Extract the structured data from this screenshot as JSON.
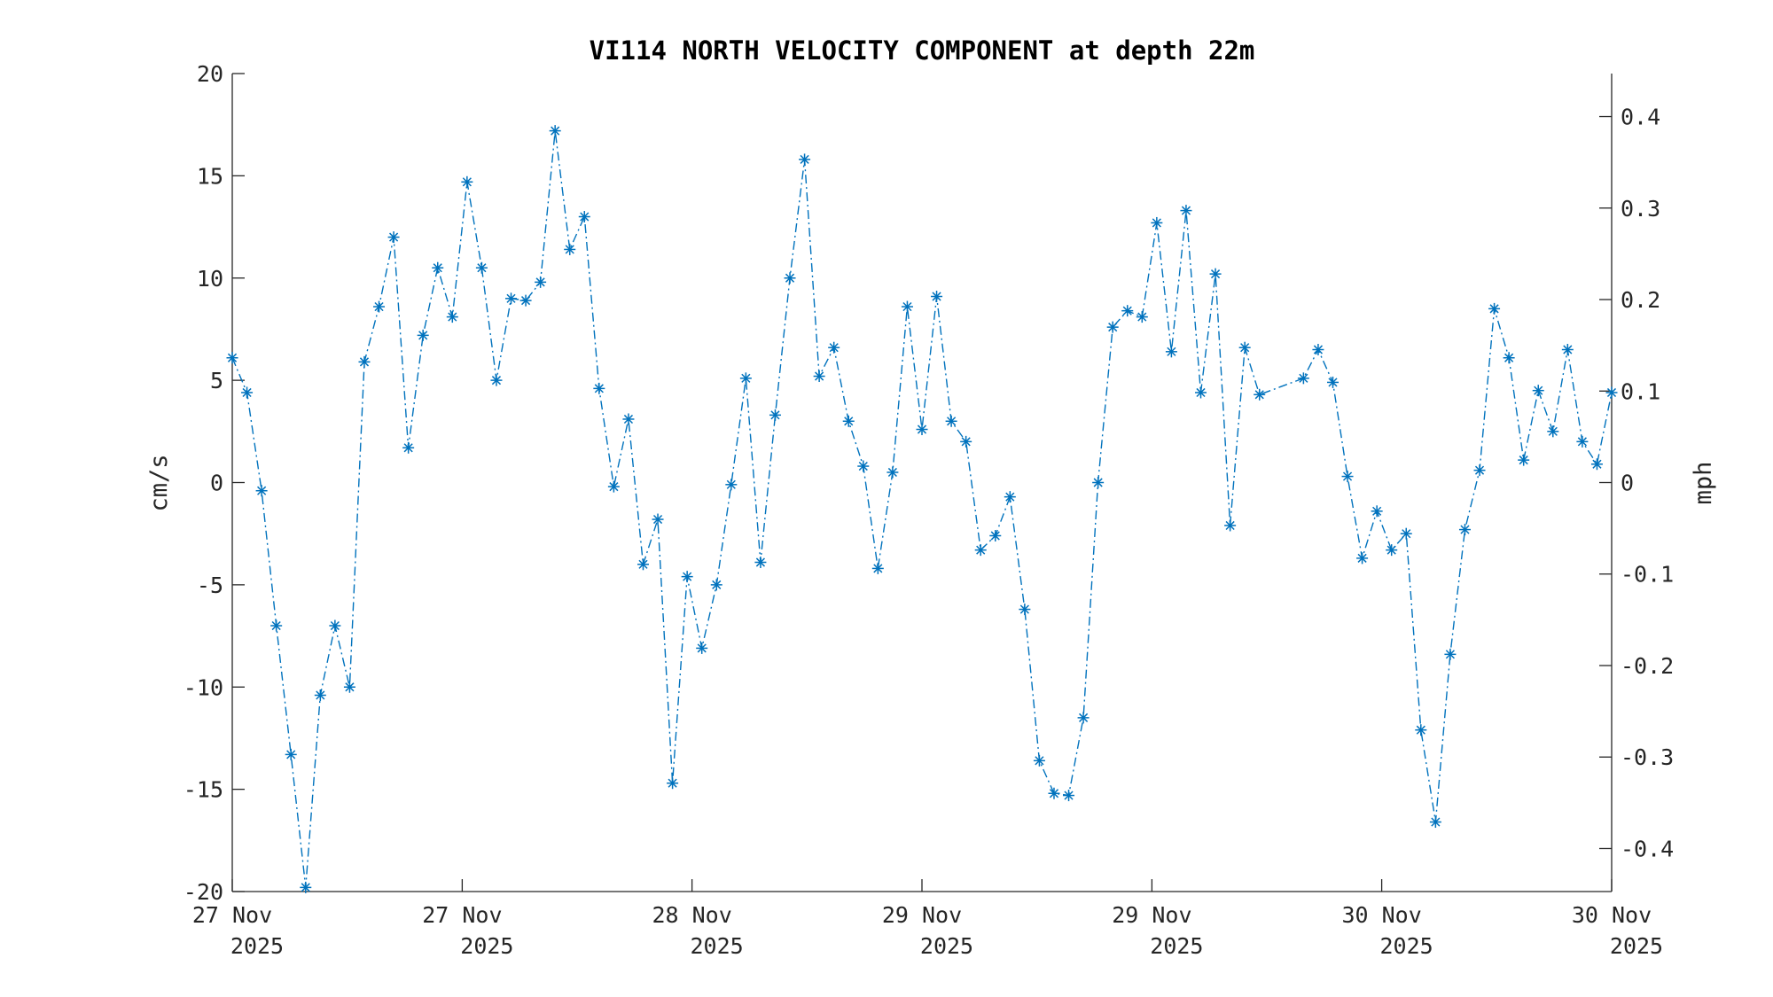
{
  "chart_data": {
    "type": "line",
    "title": "VI114 NORTH VELOCITY COMPONENT at depth 22m",
    "ylabel": "cm/s",
    "ylabel_right": "mph",
    "xlabel": "",
    "ylim": [
      -20,
      20
    ],
    "ylim_right": [
      -0.447,
      0.447
    ],
    "xlim": [
      0,
      94
    ],
    "grid": false,
    "line_style": "dash-dot",
    "marker": "asterisk",
    "color": "#0072BD",
    "yticks": [
      "-20",
      "-15",
      "-10",
      "-5",
      "0",
      "5",
      "10",
      "15",
      "20"
    ],
    "yticks_right": [
      "-0.4",
      "-0.3",
      "-0.2",
      "-0.1",
      "0",
      "0.1",
      "0.2",
      "0.3",
      "0.4"
    ],
    "xticks": [
      {
        "x": 0,
        "line1": "27 Nov",
        "line2": "2025"
      },
      {
        "x": 15.67,
        "line1": "27 Nov",
        "line2": "2025"
      },
      {
        "x": 31.33,
        "line1": "28 Nov",
        "line2": "2025"
      },
      {
        "x": 47,
        "line1": "29 Nov",
        "line2": "2025"
      },
      {
        "x": 62.67,
        "line1": "29 Nov",
        "line2": "2025"
      },
      {
        "x": 78.33,
        "line1": "30 Nov",
        "line2": "2025"
      },
      {
        "x": 94,
        "line1": "30 Nov",
        "line2": "2025"
      }
    ],
    "x": [
      0,
      1,
      2,
      3,
      4,
      5,
      6,
      7,
      8,
      9,
      10,
      11,
      12,
      13,
      14,
      15,
      16,
      17,
      18,
      19,
      20,
      21,
      22,
      23,
      24,
      25,
      26,
      27,
      28,
      29,
      30,
      31,
      32,
      33,
      34,
      35,
      36,
      37,
      38,
      39,
      40,
      41,
      42,
      43,
      44,
      45,
      46,
      47,
      48,
      49,
      50,
      51,
      52,
      53,
      54,
      55,
      56,
      57,
      58,
      59,
      60,
      61,
      62,
      63,
      64,
      65,
      66,
      67,
      68,
      69,
      70,
      73,
      74,
      75,
      76,
      77,
      78,
      79,
      80,
      81,
      82,
      83,
      84,
      85,
      86,
      87,
      88,
      89,
      90,
      91,
      92,
      93,
      94
    ],
    "values": [
      6.1,
      4.4,
      -0.4,
      -7.0,
      -13.3,
      -19.8,
      -10.4,
      -7.0,
      -10.0,
      5.9,
      8.6,
      12.0,
      1.7,
      7.2,
      10.5,
      8.1,
      14.7,
      10.5,
      5.0,
      9.0,
      8.9,
      9.8,
      17.2,
      11.4,
      13.0,
      4.6,
      -0.2,
      3.1,
      -4.0,
      -1.8,
      -14.7,
      -4.6,
      -8.1,
      -5.0,
      -0.1,
      5.1,
      -3.9,
      3.3,
      10.0,
      15.8,
      5.2,
      6.6,
      3.0,
      0.8,
      -4.2,
      0.5,
      8.6,
      2.6,
      9.1,
      3.0,
      2.0,
      -3.3,
      -2.6,
      -0.7,
      -6.2,
      -13.6,
      -15.2,
      -15.3,
      -11.5,
      0.0,
      7.6,
      8.4,
      8.1,
      12.7,
      6.4,
      13.3,
      4.4,
      10.2,
      -2.1,
      6.6,
      4.3,
      5.1,
      6.5,
      4.9,
      0.3,
      -3.7,
      -1.4,
      -3.3,
      -2.5,
      -12.1,
      -16.6,
      -8.4,
      -2.3,
      0.6,
      8.5,
      6.1,
      1.1,
      4.5,
      2.5,
      6.5,
      2.0,
      0.9,
      4.4
    ]
  }
}
